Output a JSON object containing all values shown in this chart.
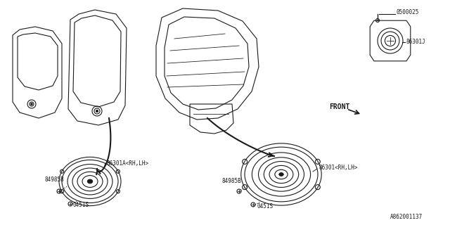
{
  "bg_color": "#ffffff",
  "line_color": "#1a1a1a",
  "parts": {
    "part1": "86301A<RH,LH>",
    "part2_a": "84985B",
    "part3_a": "0451S",
    "part4": "86301<RH,LH>",
    "part2_b": "84985B",
    "part3_b": "0451S",
    "part7": "0500025",
    "part8": "86301J"
  },
  "watermark": "A862001137",
  "front_label": "FRONT",
  "figsize": [
    6.4,
    3.2
  ],
  "dpi": 100
}
